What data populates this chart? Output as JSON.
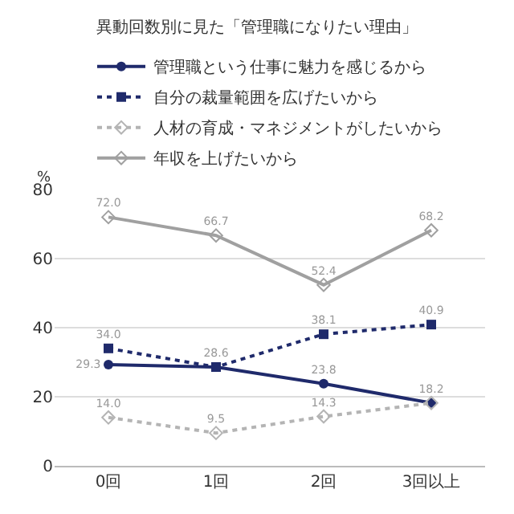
{
  "chart_data": {
    "type": "line",
    "title": "異動回数別に見た「管理職になりたい理由」",
    "ylabel": "%",
    "categories": [
      "0回",
      "1回",
      "2回",
      "3回以上"
    ],
    "ylim": [
      0,
      80
    ],
    "yticks": [
      0,
      20,
      40,
      60,
      80
    ],
    "grid": "y",
    "legend": "top",
    "series": [
      {
        "name": "管理職という仕事に魅力を感じるから",
        "color": "#1f2a6b",
        "marker": "circle",
        "line_style": "solid",
        "values": [
          29.3,
          28.6,
          23.8,
          18.2
        ],
        "value_labels": [
          "29.3",
          "28.6",
          "23.8",
          null
        ]
      },
      {
        "name": "自分の裁量範囲を広げたいから",
        "color": "#1f2a6b",
        "marker": "square",
        "line_style": "dotted",
        "values": [
          34.0,
          28.6,
          38.1,
          40.9
        ],
        "value_labels": [
          "34.0",
          null,
          "38.1",
          "40.9"
        ]
      },
      {
        "name": "人材の育成・マネジメントがしたいから",
        "color": "#b4b4b4",
        "marker": "diamond",
        "line_style": "dotted",
        "values": [
          14.0,
          9.5,
          14.3,
          18.2
        ],
        "value_labels": [
          "14.0",
          "9.5",
          "14.3",
          "18.2"
        ]
      },
      {
        "name": "年収を上げたいから",
        "color": "#a0a0a0",
        "marker": "diamond",
        "line_style": "solid",
        "values": [
          72.0,
          66.7,
          52.4,
          68.2
        ],
        "value_labels": [
          "72.0",
          "66.7",
          "52.4",
          "68.2"
        ]
      }
    ]
  }
}
